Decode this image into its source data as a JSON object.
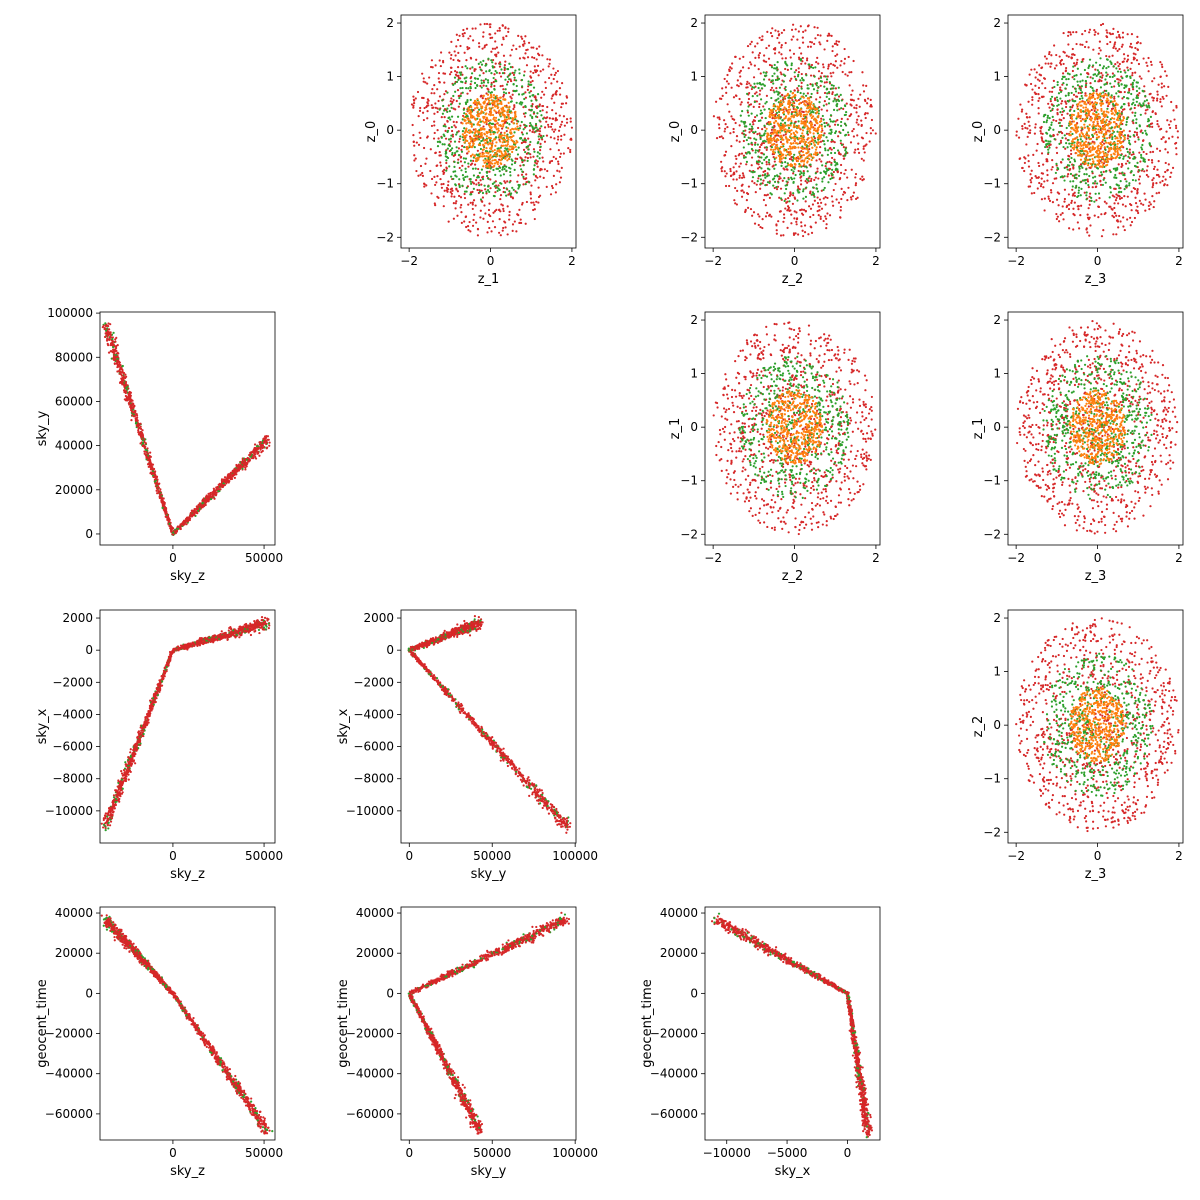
{
  "figure": {
    "type": "pairwise scatter matrix",
    "colors": {
      "inner": "#ff7f0e",
      "middle": "#2ca02c",
      "outer": "#d62728"
    },
    "panels": [
      {
        "row": 0,
        "col": 1,
        "pattern": "rings",
        "xlabel": "z_1",
        "ylabel": "z_0",
        "xlim": [
          -2.2,
          2.1
        ],
        "ylim": [
          -2.2,
          2.15
        ],
        "xticks": [
          -2,
          0,
          2
        ],
        "yticks": [
          -2,
          -1,
          0,
          1,
          2
        ]
      },
      {
        "row": 0,
        "col": 2,
        "pattern": "rings",
        "xlabel": "z_2",
        "ylabel": "z_0",
        "xlim": [
          -2.2,
          2.1
        ],
        "ylim": [
          -2.2,
          2.15
        ],
        "xticks": [
          -2,
          0,
          2
        ],
        "yticks": [
          -2,
          -1,
          0,
          1,
          2
        ]
      },
      {
        "row": 0,
        "col": 3,
        "pattern": "rings",
        "xlabel": "z_3",
        "ylabel": "z_0",
        "xlim": [
          -2.2,
          2.1
        ],
        "ylim": [
          -2.2,
          2.15
        ],
        "xticks": [
          -2,
          0,
          2
        ],
        "yticks": [
          -2,
          -1,
          0,
          1,
          2
        ]
      },
      {
        "row": 1,
        "col": 0,
        "pattern": "v",
        "xlabel": "sky_z",
        "ylabel": "sky_y",
        "xlim": [
          -40000,
          56000
        ],
        "ylim": [
          -5000,
          100500
        ],
        "xticks": [
          0,
          50000
        ],
        "yticks": [
          0,
          20000,
          40000,
          60000,
          80000,
          100000
        ],
        "trend": {
          "left": [
            -37000,
            95000
          ],
          "vertex": [
            0,
            0
          ],
          "right": [
            52000,
            43000
          ]
        }
      },
      {
        "row": 1,
        "col": 2,
        "pattern": "rings",
        "xlabel": "z_2",
        "ylabel": "z_1",
        "xlim": [
          -2.2,
          2.1
        ],
        "ylim": [
          -2.2,
          2.15
        ],
        "xticks": [
          -2,
          0,
          2
        ],
        "yticks": [
          -2,
          -1,
          0,
          1,
          2
        ]
      },
      {
        "row": 1,
        "col": 3,
        "pattern": "rings",
        "xlabel": "z_3",
        "ylabel": "z_1",
        "xlim": [
          -2.2,
          2.1
        ],
        "ylim": [
          -2.2,
          2.15
        ],
        "xticks": [
          -2,
          0,
          2
        ],
        "yticks": [
          -2,
          -1,
          0,
          1,
          2
        ]
      },
      {
        "row": 2,
        "col": 0,
        "pattern": "bend",
        "xlabel": "sky_z",
        "ylabel": "sky_x",
        "xlim": [
          -40000,
          56000
        ],
        "ylim": [
          -12000,
          2500
        ],
        "xticks": [
          0,
          50000
        ],
        "yticks": [
          -10000,
          -8000,
          -6000,
          -4000,
          -2000,
          0,
          2000
        ],
        "trend": {
          "a": [
            -37000,
            -11000
          ],
          "vertex": [
            0,
            0
          ],
          "b": [
            52000,
            1700
          ]
        }
      },
      {
        "row": 2,
        "col": 1,
        "pattern": "bend",
        "xlabel": "sky_y",
        "ylabel": "sky_x",
        "xlim": [
          -5000,
          100500
        ],
        "ylim": [
          -12000,
          2500
        ],
        "xticks": [
          0,
          50000,
          100000
        ],
        "yticks": [
          -10000,
          -8000,
          -6000,
          -4000,
          -2000,
          0,
          2000
        ],
        "trend": {
          "a": [
            95000,
            -11000
          ],
          "vertex": [
            0,
            0
          ],
          "b": [
            43000,
            1700
          ]
        }
      },
      {
        "row": 2,
        "col": 3,
        "pattern": "rings",
        "xlabel": "z_3",
        "ylabel": "z_2",
        "xlim": [
          -2.2,
          2.1
        ],
        "ylim": [
          -2.2,
          2.15
        ],
        "xticks": [
          -2,
          0,
          2
        ],
        "yticks": [
          -2,
          -1,
          0,
          1,
          2
        ]
      },
      {
        "row": 3,
        "col": 0,
        "pattern": "line",
        "xlabel": "sky_z",
        "ylabel": "geocent_time",
        "xlim": [
          -40000,
          56000
        ],
        "ylim": [
          -73000,
          43000
        ],
        "xticks": [
          0,
          50000
        ],
        "yticks": [
          -60000,
          -40000,
          -20000,
          0,
          20000,
          40000
        ],
        "trend": {
          "a": [
            -37000,
            37000
          ],
          "vertex": [
            0,
            0
          ],
          "b": [
            52000,
            -69000
          ]
        }
      },
      {
        "row": 3,
        "col": 1,
        "pattern": "v",
        "xlabel": "sky_y",
        "ylabel": "geocent_time",
        "xlim": [
          -5000,
          100500
        ],
        "ylim": [
          -73000,
          43000
        ],
        "xticks": [
          0,
          50000,
          100000
        ],
        "yticks": [
          -60000,
          -40000,
          -20000,
          0,
          20000,
          40000
        ],
        "trend": {
          "left": [
            95000,
            37000
          ],
          "vertex": [
            0,
            0
          ],
          "right": [
            43000,
            -69000
          ]
        }
      },
      {
        "row": 3,
        "col": 2,
        "pattern": "bend",
        "xlabel": "sky_x",
        "ylabel": "geocent_time",
        "xlim": [
          -11800,
          2700
        ],
        "ylim": [
          -73000,
          43000
        ],
        "xticks": [
          -10000,
          -5000,
          0
        ],
        "yticks": [
          -60000,
          -40000,
          -20000,
          0,
          20000,
          40000
        ],
        "trend": {
          "a": [
            -11000,
            37000
          ],
          "vertex": [
            0,
            0
          ],
          "b": [
            1700,
            -69000
          ]
        }
      }
    ]
  },
  "chart_data": [
    {
      "type": "scatter",
      "xlabel": "z_1",
      "ylabel": "z_0",
      "xlim": [
        -2.2,
        2.1
      ],
      "ylim": [
        -2.2,
        2.15
      ],
      "series": [
        {
          "color": "#ff7f0e",
          "distribution": "uniform disk",
          "radius": [
            0,
            0.7
          ]
        },
        {
          "color": "#2ca02c",
          "distribution": "uniform disk",
          "radius": [
            0,
            1.35
          ]
        },
        {
          "color": "#d62728",
          "distribution": "uniform disk",
          "radius": [
            0,
            2.0
          ]
        }
      ]
    },
    {
      "type": "scatter",
      "xlabel": "z_2",
      "ylabel": "z_0",
      "xlim": [
        -2.2,
        2.1
      ],
      "ylim": [
        -2.2,
        2.15
      ],
      "series": [
        {
          "color": "#ff7f0e",
          "distribution": "uniform disk",
          "radius": [
            0,
            0.7
          ]
        },
        {
          "color": "#2ca02c",
          "distribution": "uniform disk",
          "radius": [
            0,
            1.35
          ]
        },
        {
          "color": "#d62728",
          "distribution": "uniform disk",
          "radius": [
            0,
            2.0
          ]
        }
      ]
    },
    {
      "type": "scatter",
      "xlabel": "z_3",
      "ylabel": "z_0",
      "xlim": [
        -2.2,
        2.1
      ],
      "ylim": [
        -2.2,
        2.15
      ],
      "series": [
        {
          "color": "#ff7f0e",
          "distribution": "uniform disk",
          "radius": [
            0,
            0.7
          ]
        },
        {
          "color": "#2ca02c",
          "distribution": "uniform disk",
          "radius": [
            0,
            1.35
          ]
        },
        {
          "color": "#d62728",
          "distribution": "uniform disk",
          "radius": [
            0,
            2.0
          ]
        }
      ]
    },
    {
      "type": "scatter",
      "xlabel": "sky_z",
      "ylabel": "sky_y",
      "xlim": [
        -40000,
        56000
      ],
      "ylim": [
        -5000,
        100500
      ],
      "series": [
        {
          "color": "#d62728",
          "polyline": [
            [
              -37000,
              95000
            ],
            [
              0,
              0
            ],
            [
              52000,
              43000
            ]
          ]
        }
      ]
    },
    {
      "type": "scatter",
      "xlabel": "z_2",
      "ylabel": "z_1",
      "xlim": [
        -2.2,
        2.1
      ],
      "ylim": [
        -2.2,
        2.15
      ],
      "series": [
        {
          "color": "#ff7f0e",
          "distribution": "uniform disk",
          "radius": [
            0,
            0.7
          ]
        },
        {
          "color": "#2ca02c",
          "distribution": "uniform disk",
          "radius": [
            0,
            1.35
          ]
        },
        {
          "color": "#d62728",
          "distribution": "uniform disk",
          "radius": [
            0,
            2.0
          ]
        }
      ]
    },
    {
      "type": "scatter",
      "xlabel": "z_3",
      "ylabel": "z_1",
      "xlim": [
        -2.2,
        2.1
      ],
      "ylim": [
        -2.2,
        2.15
      ],
      "series": [
        {
          "color": "#ff7f0e",
          "distribution": "uniform disk",
          "radius": [
            0,
            0.7
          ]
        },
        {
          "color": "#2ca02c",
          "distribution": "uniform disk",
          "radius": [
            0,
            1.35
          ]
        },
        {
          "color": "#d62728",
          "distribution": "uniform disk",
          "radius": [
            0,
            2.0
          ]
        }
      ]
    },
    {
      "type": "scatter",
      "xlabel": "sky_z",
      "ylabel": "sky_x",
      "xlim": [
        -40000,
        56000
      ],
      "ylim": [
        -12000,
        2500
      ],
      "series": [
        {
          "color": "#d62728",
          "polyline": [
            [
              -37000,
              -11000
            ],
            [
              0,
              0
            ],
            [
              52000,
              1700
            ]
          ]
        }
      ]
    },
    {
      "type": "scatter",
      "xlabel": "sky_y",
      "ylabel": "sky_x",
      "xlim": [
        -5000,
        100500
      ],
      "ylim": [
        -12000,
        2500
      ],
      "series": [
        {
          "color": "#d62728",
          "polyline": [
            [
              95000,
              -11000
            ],
            [
              0,
              0
            ],
            [
              43000,
              1700
            ]
          ]
        }
      ]
    },
    {
      "type": "scatter",
      "xlabel": "z_3",
      "ylabel": "z_2",
      "xlim": [
        -2.2,
        2.1
      ],
      "ylim": [
        -2.2,
        2.15
      ],
      "series": [
        {
          "color": "#ff7f0e",
          "distribution": "uniform disk",
          "radius": [
            0,
            0.7
          ]
        },
        {
          "color": "#2ca02c",
          "distribution": "uniform disk",
          "radius": [
            0,
            1.35
          ]
        },
        {
          "color": "#d62728",
          "distribution": "uniform disk",
          "radius": [
            0,
            2.0
          ]
        }
      ]
    },
    {
      "type": "scatter",
      "xlabel": "sky_z",
      "ylabel": "geocent_time",
      "xlim": [
        -40000,
        56000
      ],
      "ylim": [
        -73000,
        43000
      ],
      "series": [
        {
          "color": "#d62728",
          "polyline": [
            [
              -37000,
              37000
            ],
            [
              0,
              0
            ],
            [
              52000,
              -69000
            ]
          ]
        }
      ]
    },
    {
      "type": "scatter",
      "xlabel": "sky_y",
      "ylabel": "geocent_time",
      "xlim": [
        -5000,
        100500
      ],
      "ylim": [
        -73000,
        43000
      ],
      "series": [
        {
          "color": "#d62728",
          "polyline": [
            [
              95000,
              37000
            ],
            [
              0,
              0
            ],
            [
              43000,
              -69000
            ]
          ]
        }
      ]
    },
    {
      "type": "scatter",
      "xlabel": "sky_x",
      "ylabel": "geocent_time",
      "xlim": [
        -11800,
        2700
      ],
      "ylim": [
        -73000,
        43000
      ],
      "series": [
        {
          "color": "#d62728",
          "polyline": [
            [
              -11000,
              37000
            ],
            [
              0,
              0
            ],
            [
              1700,
              -69000
            ]
          ]
        }
      ]
    }
  ]
}
